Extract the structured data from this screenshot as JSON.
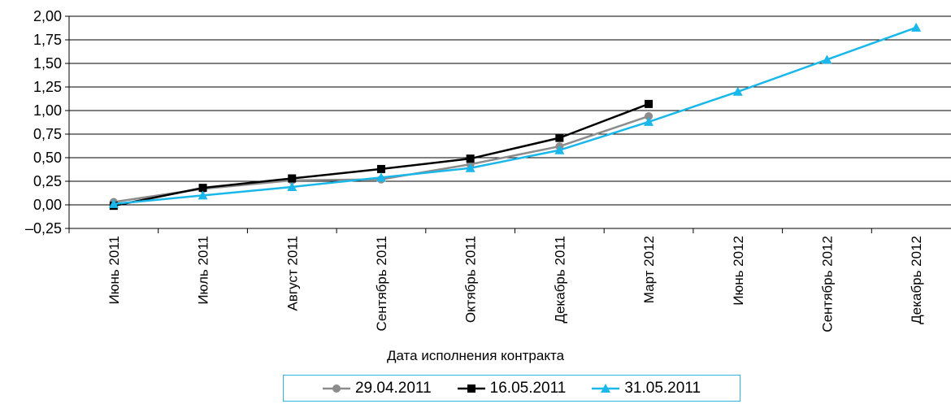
{
  "chart_data": {
    "type": "line",
    "title": "",
    "xlabel": "Дата исполнения контракта",
    "ylabel": "",
    "categories": [
      "Июнь 2011",
      "Июль 2011",
      "Август 2011",
      "Сентябрь 2011",
      "Октябрь 2011",
      "Декабрь 2011",
      "Март 2012",
      "Июнь 2012",
      "Сентябрь 2012",
      "Декабрь 2012"
    ],
    "ylim": [
      -0.25,
      2.0
    ],
    "yticks": [
      "2,00",
      "1,75",
      "1,50",
      "1,25",
      "1,00",
      "0,75",
      "0,50",
      "0,25",
      "0,00",
      "–0,25"
    ],
    "ytick_values": [
      2.0,
      1.75,
      1.5,
      1.25,
      1.0,
      0.75,
      0.5,
      0.25,
      0.0,
      -0.25
    ],
    "grid": true,
    "legend_position": "bottom",
    "series": [
      {
        "name": "29.04.2011",
        "color": "#8c8c8c",
        "marker": "circle",
        "values": [
          0.03,
          0.17,
          0.26,
          0.27,
          0.43,
          0.62,
          0.94,
          null,
          null,
          null
        ]
      },
      {
        "name": "16.05.2011",
        "color": "#000000",
        "marker": "square",
        "values": [
          -0.01,
          0.18,
          0.28,
          0.38,
          0.49,
          0.71,
          1.07,
          null,
          null,
          null
        ]
      },
      {
        "name": "31.05.2011",
        "color": "#1ab7ea",
        "marker": "triangle",
        "values": [
          0.01,
          0.1,
          0.19,
          0.29,
          0.39,
          0.58,
          0.88,
          1.2,
          1.54,
          1.88
        ]
      }
    ]
  }
}
